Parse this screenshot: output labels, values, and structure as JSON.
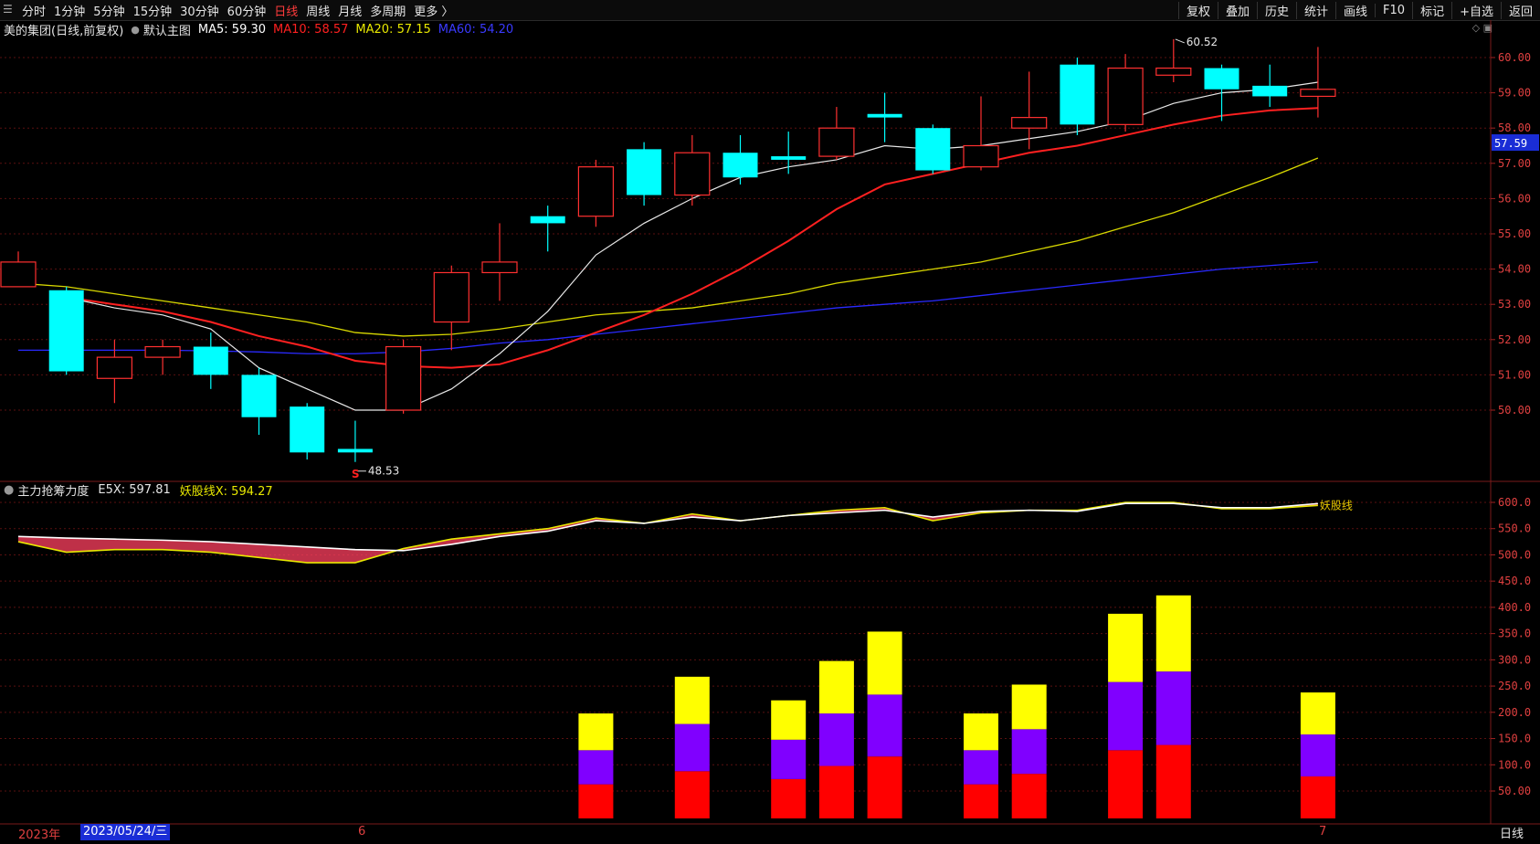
{
  "toolbar": {
    "periods": [
      "分时",
      "1分钟",
      "5分钟",
      "15分钟",
      "30分钟",
      "60分钟",
      "日线",
      "周线",
      "月线",
      "多周期",
      "更多 〉"
    ],
    "active_period": "日线",
    "right_tools": [
      "复权",
      "叠加",
      "历史",
      "统计",
      "画线",
      "F10",
      "标记",
      "+自选",
      "返回"
    ]
  },
  "main_legend": {
    "stock": "美的集团(日线,前复权)",
    "template": "默认主图",
    "ma5": "MA5: 59.30",
    "ma10": "MA10: 58.57",
    "ma20": "MA20: 57.15",
    "ma60": "MA60: 54.20",
    "colors": {
      "ma5": "#ffffff",
      "ma10": "#ff2020",
      "ma20": "#e8e800",
      "ma60": "#2a2aff"
    }
  },
  "indicator_legend": {
    "name": "主力抢筹力度",
    "e5x": "E5X: 597.81",
    "ygx": "妖股线X: 594.27",
    "line_label": "妖股线"
  },
  "price_axis": {
    "labels": [
      "60.00",
      "59.00",
      "58.00",
      "57.00",
      "56.00",
      "55.00",
      "54.00",
      "53.00",
      "52.00",
      "51.00",
      "50.00"
    ],
    "current_price": "57.59"
  },
  "indicator_axis": {
    "labels": [
      "600.0",
      "550.0",
      "500.0",
      "450.0",
      "400.0",
      "350.0",
      "300.0",
      "250.0",
      "200.0",
      "150.0",
      "100.0",
      "50.00"
    ]
  },
  "annotations": {
    "high": "60.52",
    "low": "48.53",
    "low_marker": "S"
  },
  "date_axis": {
    "year": "2023年",
    "cursor_date": "2023/05/24/三",
    "month6": "6",
    "month7": "7",
    "period": "日线"
  },
  "chart_data": {
    "type": "candlestick",
    "price_range": [
      49.0,
      60.5
    ],
    "candles": [
      {
        "o": 53.5,
        "c": 54.2,
        "h": 54.5,
        "l": 53.5
      },
      {
        "o": 53.4,
        "c": 51.1,
        "h": 53.5,
        "l": 51.0
      },
      {
        "o": 50.9,
        "c": 51.5,
        "h": 52.0,
        "l": 50.2
      },
      {
        "o": 51.5,
        "c": 51.8,
        "h": 52.0,
        "l": 51.0
      },
      {
        "o": 51.8,
        "c": 51.0,
        "h": 52.2,
        "l": 50.6
      },
      {
        "o": 51.0,
        "c": 49.8,
        "h": 51.2,
        "l": 49.3
      },
      {
        "o": 50.1,
        "c": 48.8,
        "h": 50.2,
        "l": 48.6
      },
      {
        "o": 48.9,
        "c": 48.8,
        "h": 49.7,
        "l": 48.53
      },
      {
        "o": 50.0,
        "c": 51.8,
        "h": 52.0,
        "l": 49.9
      },
      {
        "o": 52.5,
        "c": 53.9,
        "h": 54.1,
        "l": 51.7
      },
      {
        "o": 53.9,
        "c": 54.2,
        "h": 55.3,
        "l": 53.1
      },
      {
        "o": 55.5,
        "c": 55.3,
        "h": 55.8,
        "l": 54.5
      },
      {
        "o": 55.5,
        "c": 56.9,
        "h": 57.1,
        "l": 55.2
      },
      {
        "o": 57.4,
        "c": 56.1,
        "h": 57.6,
        "l": 55.8
      },
      {
        "o": 56.1,
        "c": 57.3,
        "h": 57.8,
        "l": 55.8
      },
      {
        "o": 57.3,
        "c": 56.6,
        "h": 57.8,
        "l": 56.4
      },
      {
        "o": 57.2,
        "c": 57.1,
        "h": 57.9,
        "l": 56.7
      },
      {
        "o": 57.2,
        "c": 58.0,
        "h": 58.6,
        "l": 57.1
      },
      {
        "o": 58.4,
        "c": 58.3,
        "h": 59.0,
        "l": 57.6
      },
      {
        "o": 58.0,
        "c": 56.8,
        "h": 58.1,
        "l": 56.7
      },
      {
        "o": 56.9,
        "c": 57.5,
        "h": 58.9,
        "l": 56.8
      },
      {
        "o": 58.0,
        "c": 58.3,
        "h": 59.6,
        "l": 57.4
      },
      {
        "o": 59.8,
        "c": 58.1,
        "h": 60.0,
        "l": 57.8
      },
      {
        "o": 58.1,
        "c": 59.7,
        "h": 60.1,
        "l": 57.9
      },
      {
        "o": 59.5,
        "c": 59.7,
        "h": 60.52,
        "l": 59.3
      },
      {
        "o": 59.7,
        "c": 59.1,
        "h": 59.8,
        "l": 58.2
      },
      {
        "o": 59.2,
        "c": 58.9,
        "h": 59.8,
        "l": 58.6
      },
      {
        "o": 58.9,
        "c": 59.1,
        "h": 60.3,
        "l": 58.3
      }
    ],
    "ma5": [
      null,
      53.2,
      52.9,
      52.7,
      52.3,
      51.2,
      50.6,
      50.0,
      50.0,
      50.6,
      51.6,
      52.8,
      54.4,
      55.3,
      56.0,
      56.6,
      56.9,
      57.1,
      57.5,
      57.4,
      57.5,
      57.7,
      57.9,
      58.2,
      58.7,
      59.0,
      59.1,
      59.3
    ],
    "ma10": [
      null,
      53.2,
      53.0,
      52.8,
      52.5,
      52.1,
      51.8,
      51.4,
      51.25,
      51.2,
      51.3,
      51.7,
      52.2,
      52.7,
      53.3,
      54.0,
      54.8,
      55.7,
      56.4,
      56.7,
      57.0,
      57.3,
      57.5,
      57.8,
      58.1,
      58.35,
      58.5,
      58.57
    ],
    "ma20": [
      53.6,
      53.5,
      53.3,
      53.1,
      52.9,
      52.7,
      52.5,
      52.2,
      52.1,
      52.15,
      52.3,
      52.5,
      52.7,
      52.8,
      52.9,
      53.1,
      53.3,
      53.6,
      53.8,
      54.0,
      54.2,
      54.5,
      54.8,
      55.2,
      55.6,
      56.1,
      56.6,
      57.15
    ],
    "ma60": [
      51.7,
      51.7,
      51.7,
      51.7,
      51.68,
      51.65,
      51.6,
      51.6,
      51.65,
      51.75,
      51.9,
      52.0,
      52.15,
      52.3,
      52.45,
      52.6,
      52.75,
      52.9,
      53.0,
      53.1,
      53.25,
      53.4,
      53.55,
      53.7,
      53.85,
      54.0,
      54.1,
      54.2
    ],
    "indicator": {
      "range": [
        0,
        630
      ],
      "e5x": [
        535,
        532,
        530,
        528,
        525,
        520,
        515,
        510,
        508,
        520,
        535,
        545,
        565,
        560,
        572,
        565,
        575,
        580,
        585,
        572,
        583,
        585,
        583,
        598,
        598,
        590,
        590,
        597.81
      ],
      "ygx": [
        525,
        505,
        510,
        510,
        505,
        495,
        485,
        485,
        512,
        530,
        540,
        550,
        570,
        560,
        578,
        565,
        575,
        585,
        590,
        565,
        580,
        585,
        585,
        600,
        600,
        588,
        588,
        594.27
      ],
      "bars": [
        {
          "i": 12,
          "red": 65,
          "purple": 65,
          "yellow": 70
        },
        {
          "i": 14,
          "red": 90,
          "purple": 90,
          "yellow": 90
        },
        {
          "i": 16,
          "red": 75,
          "purple": 75,
          "yellow": 75
        },
        {
          "i": 17,
          "red": 100,
          "purple": 100,
          "yellow": 100
        },
        {
          "i": 18,
          "red": 118,
          "purple": 118,
          "yellow": 120
        },
        {
          "i": 20,
          "red": 65,
          "purple": 65,
          "yellow": 70
        },
        {
          "i": 21,
          "red": 85,
          "purple": 85,
          "yellow": 85
        },
        {
          "i": 23,
          "red": 130,
          "purple": 130,
          "yellow": 130
        },
        {
          "i": 24,
          "red": 140,
          "purple": 140,
          "yellow": 145
        },
        {
          "i": 27,
          "red": 80,
          "purple": 80,
          "yellow": 80
        }
      ]
    }
  }
}
